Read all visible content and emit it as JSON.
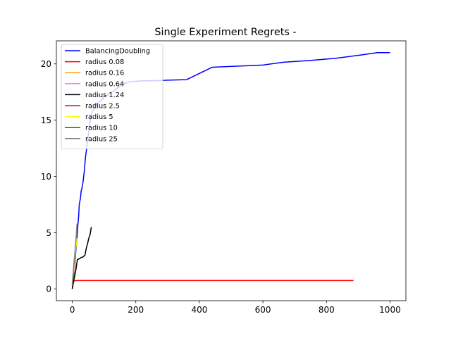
{
  "chart_data": {
    "type": "line",
    "title": "Single Experiment Regrets -",
    "xlabel": "",
    "ylabel": "",
    "xlim": [
      -50,
      1050
    ],
    "ylim": [
      -1.05,
      22.05
    ],
    "xticks": [
      0,
      200,
      400,
      600,
      800,
      1000
    ],
    "yticks": [
      0,
      5,
      10,
      15,
      20
    ],
    "grid": false,
    "legend_position": "top-left",
    "series": [
      {
        "name": "BalancingDoubling",
        "color": "#0000ff",
        "x": [
          0,
          2,
          4,
          6,
          8,
          10,
          12,
          14,
          16,
          18,
          20,
          22,
          24,
          26,
          28,
          30,
          32,
          34,
          36,
          38,
          40,
          42,
          44,
          46,
          48,
          50,
          52,
          54,
          56,
          58,
          60,
          64,
          68,
          72,
          76,
          80,
          84,
          88,
          92,
          96,
          100,
          110,
          120,
          130,
          140,
          150,
          160,
          170,
          180,
          200,
          220,
          250,
          300,
          360,
          440,
          600,
          665,
          745,
          830,
          910,
          960,
          1000
        ],
        "y": [
          0,
          0.6,
          1.0,
          1.4,
          2.2,
          3.0,
          3.6,
          4.2,
          5.0,
          5.8,
          6.4,
          7.5,
          7.8,
          8.1,
          8.7,
          8.9,
          9.2,
          9.5,
          10.0,
          10.5,
          11.2,
          11.8,
          12.2,
          12.7,
          13.1,
          13.6,
          14.0,
          14.4,
          14.8,
          15.2,
          15.5,
          15.8,
          16.0,
          16.2,
          16.4,
          16.5,
          16.6,
          16.7,
          16.8,
          16.9,
          17.1,
          17.2,
          17.4,
          17.6,
          17.8,
          18.0,
          18.2,
          18.3,
          18.4,
          18.45,
          18.5,
          18.5,
          18.55,
          18.6,
          19.7,
          19.9,
          20.15,
          20.3,
          20.5,
          20.8,
          21.0,
          21.0
        ]
      },
      {
        "name": "radius 0.08",
        "color": "#ff0000",
        "x": [
          0,
          2,
          4,
          6,
          8,
          10,
          885
        ],
        "y": [
          0,
          0.4,
          0.6,
          0.7,
          0.72,
          0.74,
          0.74
        ]
      },
      {
        "name": "radius 0.16",
        "color": "#ffa500",
        "x": [
          0,
          3,
          6,
          9,
          12
        ],
        "y": [
          0.3,
          0.8,
          1.4,
          1.8,
          2.0
        ]
      },
      {
        "name": "radius 0.64",
        "color": "#ee82ee",
        "x": [
          0,
          3,
          6,
          9
        ],
        "y": [
          0.4,
          1.0,
          1.6,
          2.1
        ]
      },
      {
        "name": "radius 1.24",
        "color": "#000000",
        "x": [
          0,
          4,
          8,
          12,
          16,
          20,
          24,
          28,
          32,
          36,
          40,
          44,
          48,
          52,
          56,
          60
        ],
        "y": [
          0,
          0.6,
          1.2,
          1.8,
          2.6,
          2.65,
          2.7,
          2.8,
          2.8,
          2.9,
          3.0,
          3.6,
          4.0,
          4.5,
          4.8,
          5.5
        ]
      },
      {
        "name": "radius 2.5",
        "color": "#b22222",
        "x": [
          0,
          2,
          4,
          6
        ],
        "y": [
          0.5,
          1.0,
          1.3,
          1.5
        ]
      },
      {
        "name": "radius 5",
        "color": "#ffff00",
        "x": [
          0,
          3,
          6,
          9,
          12,
          15
        ],
        "y": [
          0.3,
          1.2,
          2.2,
          3.1,
          3.8,
          4.5
        ]
      },
      {
        "name": "radius 10",
        "color": "#008000",
        "x": [
          0,
          2,
          4,
          6,
          8
        ],
        "y": [
          0.5,
          0.8,
          1.1,
          1.3,
          1.4
        ]
      },
      {
        "name": "radius 25",
        "color": "#808080",
        "x": [
          0,
          3,
          6,
          9,
          12,
          15
        ],
        "y": [
          0.3,
          1.5,
          2.5,
          3.5,
          4.5,
          5.8
        ]
      }
    ]
  }
}
